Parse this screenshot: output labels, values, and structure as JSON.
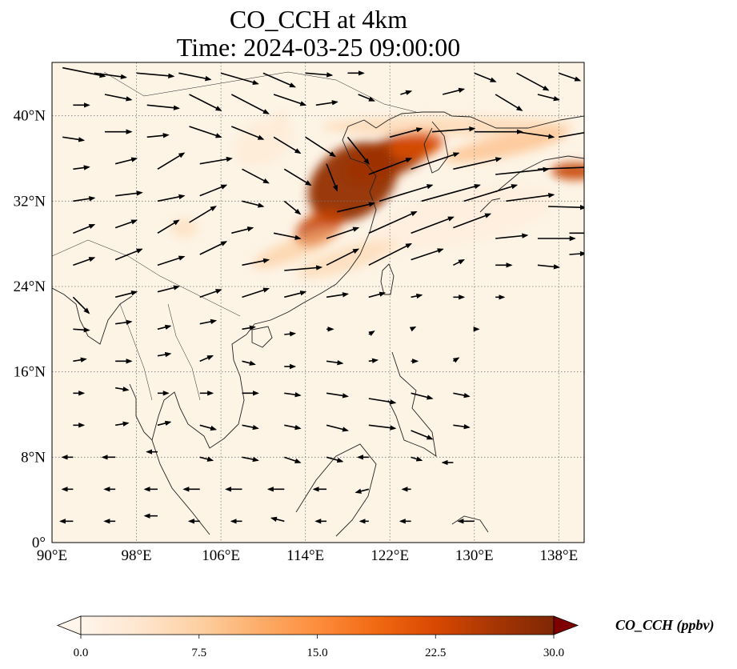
{
  "title": {
    "line1": "CO_CCH at 4km",
    "line2": "Time: 2024-03-25 09:00:00"
  },
  "map": {
    "lon_range": [
      90,
      140.4
    ],
    "lat_range": [
      0,
      45
    ],
    "lon_ticks": [
      {
        "value": 90,
        "label": "90°E"
      },
      {
        "value": 98,
        "label": "98°E"
      },
      {
        "value": 106,
        "label": "106°E"
      },
      {
        "value": 114,
        "label": "114°E"
      },
      {
        "value": 122,
        "label": "122°E"
      },
      {
        "value": 130,
        "label": "130°E"
      },
      {
        "value": 138,
        "label": "138°E"
      }
    ],
    "lat_ticks": [
      {
        "value": 0,
        "label": "0°"
      },
      {
        "value": 8,
        "label": "8°N"
      },
      {
        "value": 16,
        "label": "16°N"
      },
      {
        "value": 24,
        "label": "24°N"
      },
      {
        "value": 32,
        "label": "32°N"
      },
      {
        "value": 40,
        "label": "40°N"
      }
    ],
    "gridlines": true,
    "background_color": "#fdf4e6",
    "co_plumes": [
      {
        "lon": 118.5,
        "lat": 33.8,
        "rlon": 4.6,
        "rlat": 3.3,
        "rot": -35,
        "level": 28,
        "opacity": 0.95
      },
      {
        "lon": 121.8,
        "lat": 36.0,
        "rlon": 4.5,
        "rlat": 1.8,
        "rot": -22,
        "level": 27,
        "opacity": 0.95
      },
      {
        "lon": 124.5,
        "lat": 37.3,
        "rlon": 2.6,
        "rlat": 1.3,
        "rot": -10,
        "level": 22,
        "opacity": 0.85
      },
      {
        "lon": 115.3,
        "lat": 29.5,
        "rlon": 2.5,
        "rlat": 1.4,
        "rot": -30,
        "level": 24,
        "opacity": 0.85
      },
      {
        "lon": 139.5,
        "lat": 34.8,
        "rlon": 2.2,
        "rlat": 0.8,
        "rot": 0,
        "level": 24,
        "opacity": 0.9
      },
      {
        "lon": 113.2,
        "lat": 27.6,
        "rlon": 4.5,
        "rlat": 1.0,
        "rot": -22,
        "level": 9,
        "opacity": 0.55
      },
      {
        "lon": 118.0,
        "lat": 26.6,
        "rlon": 5.0,
        "rlat": 1.1,
        "rot": -18,
        "level": 8,
        "opacity": 0.5
      },
      {
        "lon": 127.5,
        "lat": 39.0,
        "rlon": 12.0,
        "rlat": 0.9,
        "rot": 0,
        "level": 8,
        "opacity": 0.55
      },
      {
        "lon": 133.0,
        "lat": 37.2,
        "rlon": 6.0,
        "rlat": 1.0,
        "rot": -12,
        "level": 11,
        "opacity": 0.6
      },
      {
        "lon": 102.5,
        "lat": 29.5,
        "rlon": 1.3,
        "rlat": 0.9,
        "rot": 0,
        "level": 7,
        "opacity": 0.5
      },
      {
        "lon": 111.8,
        "lat": 39.8,
        "rlon": 0.5,
        "rlat": 0.5,
        "rot": 0,
        "level": 6,
        "opacity": 0.5
      },
      {
        "lon": 110.0,
        "lat": 37.5,
        "rlon": 3.0,
        "rlat": 2.0,
        "rot": -30,
        "level": 5,
        "opacity": 0.35
      },
      {
        "lon": 129.0,
        "lat": 30.5,
        "rlon": 9.0,
        "rlat": 2.5,
        "rot": -12,
        "level": 3,
        "opacity": 0.45
      }
    ],
    "wind_vectors": [
      [
        91,
        44.5,
        4.0,
        -0.8
      ],
      [
        94,
        44,
        3.0,
        -0.4
      ],
      [
        98,
        44,
        3.5,
        -0.3
      ],
      [
        102,
        44,
        3.0,
        -0.6
      ],
      [
        106,
        44,
        3.5,
        -1.0
      ],
      [
        110,
        44,
        3.0,
        -1.3
      ],
      [
        114,
        44,
        2.5,
        -0.2
      ],
      [
        118,
        44,
        1.5,
        0.0
      ],
      [
        130,
        44,
        2.0,
        -0.8
      ],
      [
        134,
        44,
        3.0,
        -1.6
      ],
      [
        138,
        44,
        2.0,
        -0.7
      ],
      [
        92,
        41,
        1.5,
        0.0
      ],
      [
        95,
        42,
        2.5,
        -0.5
      ],
      [
        99,
        41,
        3.0,
        -0.3
      ],
      [
        103,
        42,
        3.0,
        -1.5
      ],
      [
        107,
        42,
        3.5,
        -1.8
      ],
      [
        111,
        42,
        3.0,
        -1.0
      ],
      [
        115,
        41,
        2.0,
        0.3
      ],
      [
        119,
        42,
        1.5,
        -0.6
      ],
      [
        123,
        42,
        1.0,
        0.3
      ],
      [
        127,
        42,
        2.0,
        0.5
      ],
      [
        132,
        42,
        2.5,
        -1.5
      ],
      [
        136,
        42,
        2.0,
        -0.5
      ],
      [
        91,
        38,
        2.0,
        -0.3
      ],
      [
        95,
        38.5,
        2.5,
        0.0
      ],
      [
        99,
        38,
        2.0,
        0.2
      ],
      [
        103,
        39,
        3.0,
        -1.0
      ],
      [
        107,
        39,
        3.0,
        -1.2
      ],
      [
        111,
        38,
        2.5,
        -1.5
      ],
      [
        114,
        38,
        2.8,
        -1.8
      ],
      [
        118,
        38,
        2.0,
        -2.5
      ],
      [
        122,
        38,
        3.0,
        0.8
      ],
      [
        126,
        38.5,
        4.0,
        0.3
      ],
      [
        130,
        38.5,
        4.5,
        0.0
      ],
      [
        134,
        38.5,
        3.5,
        -0.5
      ],
      [
        138,
        38,
        3.5,
        0.6
      ],
      [
        92,
        35,
        1.5,
        0.2
      ],
      [
        96,
        35.5,
        2.0,
        0.5
      ],
      [
        100,
        35,
        2.5,
        1.5
      ],
      [
        104,
        35.5,
        3.0,
        0.5
      ],
      [
        108,
        35,
        2.5,
        -1.3
      ],
      [
        112,
        35,
        2.5,
        -1.5
      ],
      [
        116,
        35.5,
        1.0,
        -2.5
      ],
      [
        120,
        34.5,
        4.0,
        1.5
      ],
      [
        124,
        35,
        4.5,
        1.5
      ],
      [
        128,
        35,
        4.5,
        1.0
      ],
      [
        132,
        34.5,
        5.0,
        0.5
      ],
      [
        136,
        35,
        5.5,
        0.2
      ],
      [
        92,
        32,
        2.0,
        0.3
      ],
      [
        96,
        32.5,
        2.5,
        0.3
      ],
      [
        100,
        32,
        2.5,
        0.5
      ],
      [
        104,
        32.5,
        2.5,
        1.0
      ],
      [
        108,
        32,
        2.0,
        -0.5
      ],
      [
        112,
        32,
        1.5,
        -1.2
      ],
      [
        117,
        31,
        3.5,
        0.8
      ],
      [
        121,
        32,
        5.0,
        1.5
      ],
      [
        125,
        32,
        5.5,
        1.5
      ],
      [
        129,
        32,
        5.0,
        1.5
      ],
      [
        133,
        32,
        4.5,
        0.6
      ],
      [
        137,
        31.5,
        3.5,
        -0.1
      ],
      [
        92,
        29,
        2.0,
        0.8
      ],
      [
        96,
        29.5,
        2.0,
        0.7
      ],
      [
        100,
        29,
        2.0,
        1.2
      ],
      [
        103,
        30,
        2.5,
        1.5
      ],
      [
        107,
        29,
        2.0,
        0.5
      ],
      [
        111,
        29,
        2.5,
        -0.5
      ],
      [
        116,
        28.5,
        3.0,
        1.0
      ],
      [
        120,
        29,
        4.5,
        2.0
      ],
      [
        124,
        29,
        4.0,
        1.5
      ],
      [
        128,
        29.5,
        3.5,
        1.3
      ],
      [
        132,
        28.5,
        3.0,
        0.3
      ],
      [
        136,
        28.5,
        3.5,
        0.0
      ],
      [
        139,
        29,
        2.0,
        0.0
      ],
      [
        92,
        26,
        2.0,
        0.7
      ],
      [
        96,
        26.5,
        2.5,
        1.0
      ],
      [
        100,
        26,
        2.5,
        0.8
      ],
      [
        104,
        27,
        2.5,
        1.2
      ],
      [
        108,
        26,
        2.5,
        0.5
      ],
      [
        112,
        25.5,
        3.5,
        0.3
      ],
      [
        116,
        26,
        3.0,
        1.5
      ],
      [
        120,
        26,
        4.0,
        2.0
      ],
      [
        124,
        26.5,
        3.0,
        1.0
      ],
      [
        128,
        26,
        1.0,
        0.5
      ],
      [
        132,
        26,
        1.5,
        0.0
      ],
      [
        136,
        26,
        2.0,
        -0.2
      ],
      [
        139,
        27,
        1.5,
        0.1
      ],
      [
        92,
        23,
        1.5,
        -1.5
      ],
      [
        96,
        23,
        2.0,
        0.5
      ],
      [
        100,
        23.5,
        2.0,
        0.5
      ],
      [
        104,
        23,
        2.0,
        0.7
      ],
      [
        108,
        23,
        2.5,
        0.8
      ],
      [
        112,
        23,
        2.0,
        0.5
      ],
      [
        116,
        23,
        2.0,
        0.3
      ],
      [
        120,
        23,
        1.5,
        0.4
      ],
      [
        124,
        23,
        1.0,
        0.2
      ],
      [
        128,
        23,
        1.0,
        0.0
      ],
      [
        132,
        23,
        0.8,
        0.0
      ],
      [
        92,
        20,
        1.5,
        -0.1
      ],
      [
        96,
        20.5,
        1.5,
        0.2
      ],
      [
        100,
        20,
        1.2,
        0.3
      ],
      [
        104,
        20.5,
        1.5,
        0.3
      ],
      [
        108,
        20,
        1.2,
        0.2
      ],
      [
        112,
        19.5,
        1.0,
        0.1
      ],
      [
        116,
        20,
        0.6,
        0.0
      ],
      [
        120,
        19.5,
        0.5,
        0.3
      ],
      [
        124,
        20,
        0.4,
        0.2
      ],
      [
        130,
        20,
        0.4,
        0.0
      ],
      [
        92,
        17,
        1.2,
        0.2
      ],
      [
        96,
        17,
        1.5,
        0.0
      ],
      [
        100,
        17.5,
        1.2,
        0.2
      ],
      [
        104,
        17,
        1.2,
        0.5
      ],
      [
        108,
        17,
        1.2,
        -0.3
      ],
      [
        112,
        16.5,
        1.0,
        0.0
      ],
      [
        116,
        17,
        1.5,
        -0.2
      ],
      [
        120,
        17,
        0.8,
        0.1
      ],
      [
        124,
        17,
        0.6,
        0.0
      ],
      [
        128,
        17,
        0.5,
        0.3
      ],
      [
        92,
        14,
        1.0,
        0.0
      ],
      [
        96,
        14.5,
        1.2,
        -0.2
      ],
      [
        100,
        14,
        1.0,
        0.0
      ],
      [
        104,
        14,
        1.2,
        0.0
      ],
      [
        108,
        14,
        1.5,
        0.0
      ],
      [
        112,
        14,
        1.5,
        -0.2
      ],
      [
        116,
        14,
        2.0,
        -0.3
      ],
      [
        120,
        13.5,
        2.5,
        -0.4
      ],
      [
        124,
        14,
        2.0,
        -0.5
      ],
      [
        128,
        14,
        1.5,
        -0.3
      ],
      [
        92,
        11,
        1.0,
        0.0
      ],
      [
        96,
        11,
        1.2,
        0.2
      ],
      [
        100,
        11,
        1.2,
        0.3
      ],
      [
        104,
        11,
        1.5,
        -0.4
      ],
      [
        108,
        11,
        1.5,
        -0.3
      ],
      [
        112,
        11,
        1.5,
        -0.3
      ],
      [
        116,
        11,
        2.0,
        -0.5
      ],
      [
        120,
        11,
        2.5,
        -0.3
      ],
      [
        124,
        10.5,
        2.0,
        -0.8
      ],
      [
        128,
        11,
        1.5,
        -0.2
      ],
      [
        92,
        8,
        -1.0,
        0.0
      ],
      [
        96,
        8,
        -1.2,
        0.0
      ],
      [
        100,
        8.5,
        -1.0,
        0.0
      ],
      [
        104,
        8,
        1.2,
        -0.3
      ],
      [
        108,
        8,
        1.5,
        -0.3
      ],
      [
        112,
        8,
        1.5,
        -0.5
      ],
      [
        116,
        8,
        1.5,
        -0.4
      ],
      [
        120,
        8,
        -1.0,
        0.0
      ],
      [
        124,
        8,
        1.0,
        -0.3
      ],
      [
        128,
        7.5,
        -1.0,
        0.0
      ],
      [
        92,
        5,
        -1.0,
        0.0
      ],
      [
        96,
        5,
        -1.0,
        0.0
      ],
      [
        100,
        5,
        -1.2,
        0.0
      ],
      [
        104,
        5,
        -1.5,
        0.0
      ],
      [
        108,
        5,
        -1.5,
        0.0
      ],
      [
        112,
        5,
        -1.5,
        0.0
      ],
      [
        116,
        5,
        -1.2,
        0.0
      ],
      [
        120,
        5,
        -1.2,
        -0.3
      ],
      [
        124,
        5,
        -0.8,
        0.0
      ],
      [
        92,
        2,
        -1.2,
        0.0
      ],
      [
        96,
        2,
        -1.0,
        0.0
      ],
      [
        100,
        2.5,
        -1.2,
        0.0
      ],
      [
        104,
        2,
        -1.0,
        0.0
      ],
      [
        108,
        2,
        -1.0,
        0.0
      ],
      [
        112,
        2,
        -1.2,
        0.3
      ],
      [
        116,
        2,
        -1.0,
        0.0
      ],
      [
        120,
        2,
        -0.8,
        0.0
      ],
      [
        124,
        2,
        -1.0,
        0.0
      ],
      [
        130,
        2,
        -1.5,
        0.0
      ]
    ]
  },
  "colorbar": {
    "label": "CO_CCH (ppbv)",
    "min": 0,
    "max": 30,
    "ticks": [
      {
        "value": 0,
        "label": "0.0"
      },
      {
        "value": 7.5,
        "label": "7.5"
      },
      {
        "value": 15,
        "label": "15.0"
      },
      {
        "value": 22.5,
        "label": "22.5"
      },
      {
        "value": 30,
        "label": "30.0"
      }
    ],
    "colormap": [
      "#fff5eb",
      "#fee6ce",
      "#fdd0a2",
      "#fdae6b",
      "#fd8d3c",
      "#f16913",
      "#d94801",
      "#a63603",
      "#7f2704"
    ],
    "under_color": "#fff5eb",
    "over_color": "#7f0000"
  }
}
